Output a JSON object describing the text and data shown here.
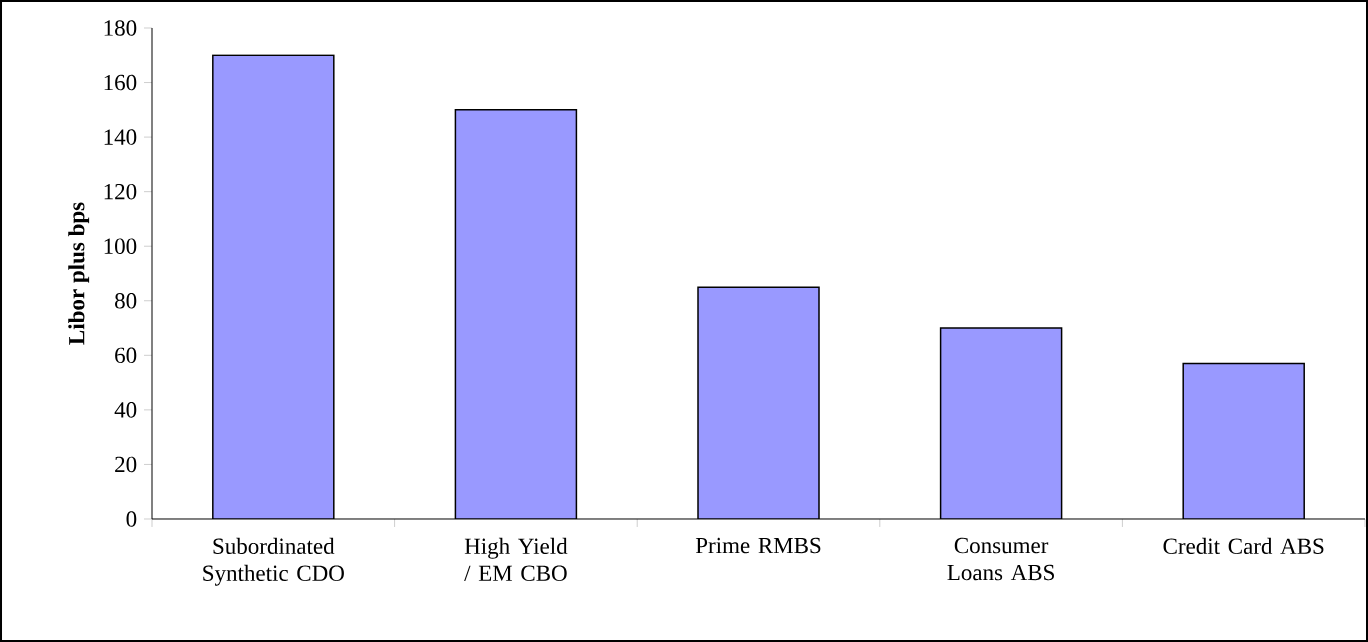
{
  "chart_data": {
    "type": "bar",
    "ylabel": "Libor plus bps",
    "categories": [
      "Subordinated Synthetic CDO",
      "High Yield / EM CBO",
      "Prime RMBS",
      "Consumer Loans ABS",
      "Credit Card ABS"
    ],
    "values": [
      170,
      150,
      85,
      70,
      57
    ],
    "color": "#9999ff",
    "ylim": [
      0,
      180
    ],
    "yticks": [
      0,
      20,
      40,
      60,
      80,
      100,
      120,
      140,
      160,
      180
    ],
    "grid": false
  }
}
